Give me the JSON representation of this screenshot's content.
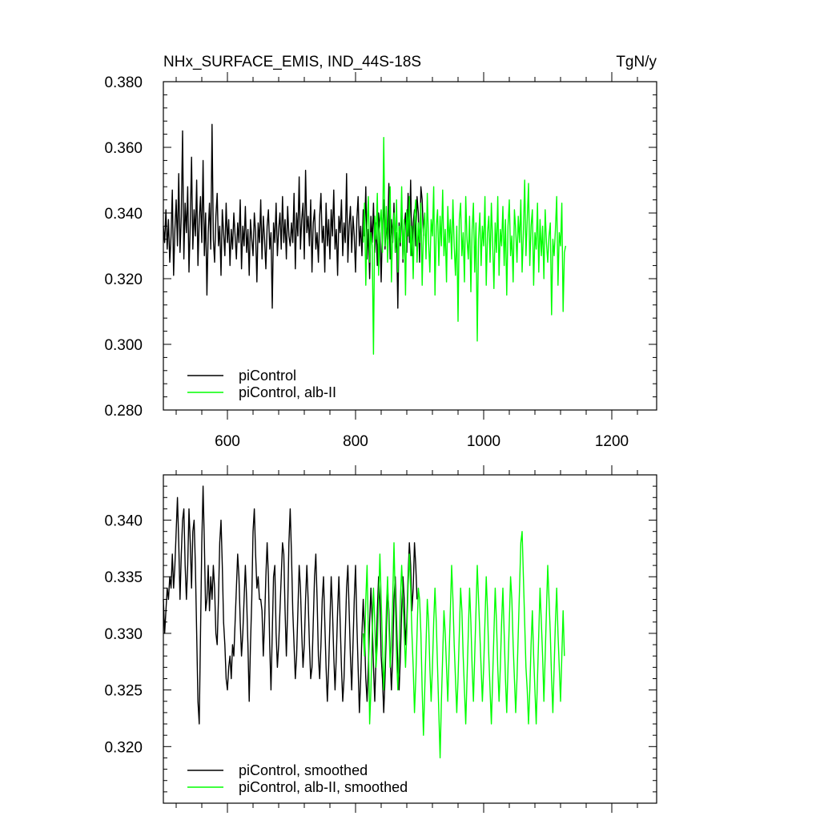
{
  "colors": {
    "piControl": "#000000",
    "albII": "#00ff00",
    "axis": "#000000"
  },
  "chart_data": [
    {
      "type": "line",
      "title_left": "NHx_SURFACE_EMIS, IND_44S-18S",
      "title_right": "TgN/y",
      "xlim": [
        500,
        1270
      ],
      "ylim": [
        0.28,
        0.38
      ],
      "xticks": [
        600,
        800,
        1000,
        1200
      ],
      "xtick_labels": [
        "600",
        "800",
        "1000",
        "1200"
      ],
      "yticks": [
        0.28,
        0.3,
        0.32,
        0.34,
        0.36,
        0.38
      ],
      "ytick_labels": [
        "0.280",
        "0.300",
        "0.320",
        "0.340",
        "0.360",
        "0.380"
      ],
      "legend_position": "bottom-left",
      "series": [
        {
          "name": "piControl",
          "color": "#000000",
          "x_start": 500,
          "x_step": 2,
          "values": [
            0.336,
            0.331,
            0.341,
            0.329,
            0.338,
            0.325,
            0.333,
            0.347,
            0.321,
            0.335,
            0.344,
            0.33,
            0.352,
            0.328,
            0.339,
            0.365,
            0.326,
            0.343,
            0.334,
            0.348,
            0.322,
            0.337,
            0.357,
            0.329,
            0.341,
            0.333,
            0.35,
            0.324,
            0.338,
            0.345,
            0.331,
            0.356,
            0.327,
            0.34,
            0.315,
            0.334,
            0.343,
            0.329,
            0.367,
            0.332,
            0.325,
            0.339,
            0.346,
            0.33,
            0.336,
            0.321,
            0.341,
            0.334,
            0.327,
            0.343,
            0.331,
            0.338,
            0.324,
            0.335,
            0.329,
            0.34,
            0.333,
            0.326,
            0.337,
            0.331,
            0.344,
            0.323,
            0.336,
            0.33,
            0.342,
            0.328,
            0.335,
            0.321,
            0.338,
            0.332,
            0.327,
            0.34,
            0.334,
            0.319,
            0.337,
            0.331,
            0.344,
            0.326,
            0.339,
            0.332,
            0.323,
            0.336,
            0.341,
            0.329,
            0.334,
            0.311,
            0.337,
            0.331,
            0.343,
            0.327,
            0.335,
            0.34,
            0.329,
            0.345,
            0.331,
            0.338,
            0.326,
            0.342,
            0.333,
            0.33,
            0.337,
            0.331,
            0.346,
            0.323,
            0.34,
            0.333,
            0.351,
            0.329,
            0.338,
            0.343,
            0.326,
            0.353,
            0.334,
            0.339,
            0.33,
            0.344,
            0.322,
            0.337,
            0.341,
            0.329,
            0.334,
            0.325,
            0.339,
            0.346,
            0.331,
            0.336,
            0.322,
            0.343,
            0.33,
            0.338,
            0.326,
            0.341,
            0.333,
            0.347,
            0.329,
            0.335,
            0.321,
            0.339,
            0.334,
            0.344,
            0.327,
            0.337,
            0.331,
            0.352,
            0.325,
            0.336,
            0.342,
            0.328,
            0.339,
            0.333,
            0.322,
            0.338,
            0.345,
            0.33,
            0.336,
            0.327,
            0.341,
            0.333,
            0.348,
            0.326,
            0.335,
            0.32,
            0.339,
            0.331,
            0.343,
            0.328,
            0.337,
            0.324,
            0.34,
            0.334,
            0.319,
            0.336,
            0.344,
            0.329,
            0.337,
            0.332,
            0.349,
            0.326,
            0.338,
            0.331,
            0.343,
            0.328,
            0.334,
            0.311,
            0.337,
            0.33,
            0.344,
            0.325,
            0.336,
            0.34,
            0.328,
            0.346,
            0.331,
            0.35,
            0.327,
            0.337,
            0.341,
            0.33,
            0.345,
            0.34,
            0.325,
            0.348,
            0.344,
            0.333
          ]
        },
        {
          "name": "piControl, alb-II",
          "color": "#00ff00",
          "x_start": 812,
          "x_step": 2,
          "values": [
            0.331,
            0.343,
            0.318,
            0.336,
            0.345,
            0.325,
            0.334,
            0.33,
            0.297,
            0.339,
            0.332,
            0.346,
            0.321,
            0.337,
            0.341,
            0.328,
            0.363,
            0.33,
            0.342,
            0.325,
            0.337,
            0.348,
            0.319,
            0.335,
            0.34,
            0.328,
            0.344,
            0.322,
            0.336,
            0.331,
            0.348,
            0.326,
            0.338,
            0.315,
            0.341,
            0.333,
            0.345,
            0.327,
            0.336,
            0.32,
            0.339,
            0.344,
            0.325,
            0.337,
            0.331,
            0.343,
            0.318,
            0.335,
            0.34,
            0.326,
            0.346,
            0.331,
            0.322,
            0.338,
            0.333,
            0.348,
            0.315,
            0.336,
            0.341,
            0.324,
            0.339,
            0.33,
            0.347,
            0.327,
            0.335,
            0.319,
            0.342,
            0.331,
            0.338,
            0.326,
            0.344,
            0.33,
            0.321,
            0.336,
            0.307,
            0.338,
            0.343,
            0.327,
            0.334,
            0.319,
            0.345,
            0.332,
            0.326,
            0.339,
            0.316,
            0.335,
            0.343,
            0.322,
            0.337,
            0.301,
            0.332,
            0.34,
            0.324,
            0.336,
            0.33,
            0.345,
            0.318,
            0.334,
            0.339,
            0.325,
            0.343,
            0.331,
            0.317,
            0.337,
            0.328,
            0.345,
            0.321,
            0.335,
            0.33,
            0.342,
            0.324,
            0.338,
            0.315,
            0.336,
            0.344,
            0.327,
            0.333,
            0.319,
            0.341,
            0.335,
            0.325,
            0.339,
            0.331,
            0.344,
            0.322,
            0.334,
            0.35,
            0.327,
            0.338,
            0.349,
            0.324,
            0.336,
            0.341,
            0.318,
            0.334,
            0.329,
            0.343,
            0.322,
            0.338,
            0.327,
            0.336,
            0.32,
            0.341,
            0.331,
            0.325,
            0.333,
            0.337,
            0.309,
            0.332,
            0.327,
            0.335,
            0.345,
            0.318,
            0.334,
            0.33,
            0.343,
            0.31,
            0.328,
            0.33
          ]
        }
      ]
    },
    {
      "type": "line",
      "xlim": [
        500,
        1270
      ],
      "ylim": [
        0.315,
        0.344
      ],
      "xticks": [
        600,
        800,
        1000,
        1200
      ],
      "yticks": [
        0.32,
        0.325,
        0.33,
        0.335,
        0.34
      ],
      "ytick_labels": [
        "0.320",
        "0.325",
        "0.330",
        "0.335",
        "0.340"
      ],
      "legend_position": "bottom-left",
      "series": [
        {
          "name": "piControl, smoothed",
          "color": "#000000",
          "x_start": 500,
          "x_step": 2,
          "values": [
            0.333,
            0.33,
            0.332,
            0.334,
            0.333,
            0.335,
            0.334,
            0.337,
            0.334,
            0.336,
            0.339,
            0.342,
            0.338,
            0.333,
            0.337,
            0.34,
            0.341,
            0.336,
            0.333,
            0.336,
            0.341,
            0.338,
            0.334,
            0.339,
            0.34,
            0.336,
            0.33,
            0.324,
            0.322,
            0.33,
            0.338,
            0.343,
            0.338,
            0.332,
            0.333,
            0.336,
            0.332,
            0.335,
            0.333,
            0.336,
            0.334,
            0.33,
            0.329,
            0.333,
            0.338,
            0.34,
            0.336,
            0.331,
            0.329,
            0.326,
            0.325,
            0.327,
            0.328,
            0.326,
            0.329,
            0.328,
            0.331,
            0.334,
            0.337,
            0.335,
            0.331,
            0.328,
            0.33,
            0.333,
            0.336,
            0.333,
            0.329,
            0.324,
            0.329,
            0.333,
            0.339,
            0.341,
            0.337,
            0.334,
            0.335,
            0.333,
            0.333,
            0.332,
            0.328,
            0.331,
            0.335,
            0.338,
            0.335,
            0.329,
            0.325,
            0.33,
            0.335,
            0.336,
            0.33,
            0.327,
            0.329,
            0.332,
            0.335,
            0.338,
            0.337,
            0.332,
            0.328,
            0.332,
            0.338,
            0.341,
            0.337,
            0.332,
            0.329,
            0.326,
            0.328,
            0.332,
            0.336,
            0.334,
            0.33,
            0.327,
            0.329,
            0.333,
            0.336,
            0.333,
            0.329,
            0.326,
            0.327,
            0.331,
            0.335,
            0.337,
            0.333,
            0.328,
            0.326,
            0.329,
            0.333,
            0.335,
            0.331,
            0.327,
            0.324,
            0.327,
            0.331,
            0.335,
            0.332,
            0.328,
            0.325,
            0.328,
            0.332,
            0.335,
            0.331,
            0.327,
            0.324,
            0.326,
            0.33,
            0.334,
            0.336,
            0.332,
            0.328,
            0.325,
            0.329,
            0.333,
            0.336,
            0.331,
            0.327,
            0.323,
            0.326,
            0.33,
            0.333,
            0.33,
            0.326,
            0.324,
            0.327,
            0.331,
            0.334,
            0.331,
            0.327,
            0.324,
            0.328,
            0.332,
            0.335,
            0.333,
            0.328,
            0.326,
            0.323,
            0.326,
            0.33,
            0.334,
            0.332,
            0.328,
            0.325,
            0.328,
            0.333,
            0.335,
            0.331,
            0.327,
            0.325,
            0.328,
            0.332,
            0.335,
            0.333,
            0.329,
            0.331,
            0.335,
            0.338,
            0.336,
            0.332,
            0.334,
            0.338,
            0.336,
            0.333
          ]
        },
        {
          "name": "piControl, alb-II, smoothed",
          "color": "#00ff00",
          "x_start": 812,
          "x_step": 2,
          "values": [
            0.33,
            0.328,
            0.333,
            0.336,
            0.33,
            0.322,
            0.325,
            0.33,
            0.334,
            0.331,
            0.327,
            0.329,
            0.333,
            0.337,
            0.333,
            0.329,
            0.325,
            0.328,
            0.332,
            0.335,
            0.331,
            0.327,
            0.329,
            0.333,
            0.338,
            0.333,
            0.328,
            0.325,
            0.328,
            0.333,
            0.336,
            0.333,
            0.33,
            0.327,
            0.33,
            0.334,
            0.337,
            0.334,
            0.33,
            0.327,
            0.323,
            0.326,
            0.33,
            0.334,
            0.333,
            0.33,
            0.325,
            0.321,
            0.325,
            0.329,
            0.333,
            0.331,
            0.327,
            0.324,
            0.327,
            0.331,
            0.334,
            0.331,
            0.327,
            0.323,
            0.319,
            0.324,
            0.328,
            0.332,
            0.33,
            0.327,
            0.324,
            0.328,
            0.332,
            0.336,
            0.333,
            0.329,
            0.326,
            0.323,
            0.326,
            0.33,
            0.334,
            0.332,
            0.328,
            0.325,
            0.322,
            0.326,
            0.33,
            0.334,
            0.331,
            0.327,
            0.324,
            0.328,
            0.332,
            0.336,
            0.333,
            0.33,
            0.327,
            0.324,
            0.327,
            0.331,
            0.335,
            0.332,
            0.328,
            0.325,
            0.322,
            0.326,
            0.33,
            0.334,
            0.331,
            0.327,
            0.324,
            0.327,
            0.331,
            0.334,
            0.33,
            0.326,
            0.323,
            0.327,
            0.331,
            0.335,
            0.333,
            0.329,
            0.326,
            0.323,
            0.326,
            0.33,
            0.334,
            0.338,
            0.339,
            0.335,
            0.331,
            0.327,
            0.325,
            0.322,
            0.325,
            0.329,
            0.332,
            0.328,
            0.325,
            0.322,
            0.326,
            0.33,
            0.334,
            0.331,
            0.328,
            0.324,
            0.328,
            0.332,
            0.336,
            0.333,
            0.33,
            0.326,
            0.323,
            0.327,
            0.331,
            0.334,
            0.33,
            0.327,
            0.324,
            0.328,
            0.332,
            0.328
          ]
        }
      ]
    }
  ]
}
